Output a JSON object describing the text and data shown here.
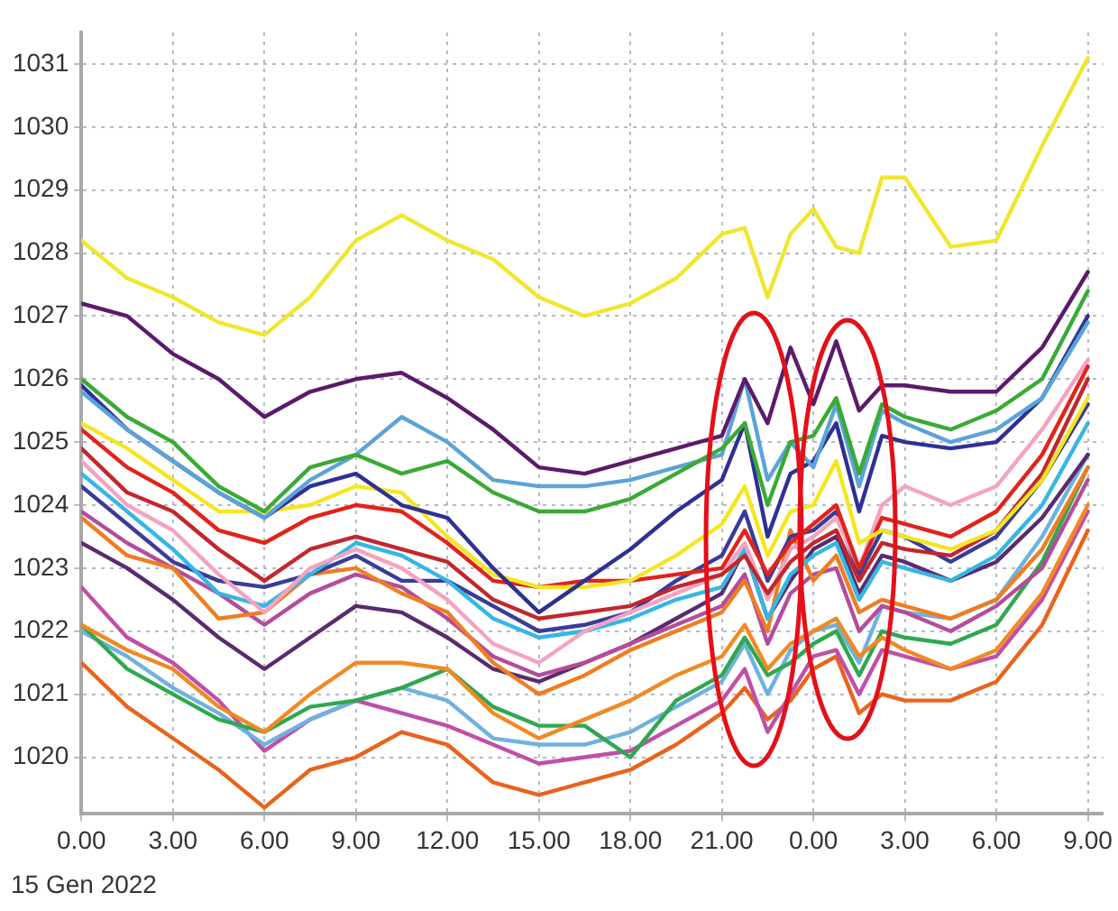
{
  "chart_data": {
    "type": "line",
    "annotations": [
      "15 Gen 2022"
    ],
    "x": [
      "2022-01-15T00:00",
      "2022-01-15T01:30",
      "2022-01-15T03:00",
      "2022-01-15T04:30",
      "2022-01-15T06:00",
      "2022-01-15T07:30",
      "2022-01-15T09:00",
      "2022-01-15T10:30",
      "2022-01-15T12:00",
      "2022-01-15T13:30",
      "2022-01-15T15:00",
      "2022-01-15T16:30",
      "2022-01-15T18:00",
      "2022-01-15T19:30",
      "2022-01-15T21:00",
      "2022-01-15T21:45",
      "2022-01-15T22:30",
      "2022-01-15T23:15",
      "2022-01-16T00:00",
      "2022-01-16T00:45",
      "2022-01-16T01:30",
      "2022-01-16T02:15",
      "2022-01-16T03:00",
      "2022-01-16T04:30",
      "2022-01-16T06:00",
      "2022-01-16T07:30",
      "2022-01-16T09:00"
    ],
    "xlim": [
      "2022-01-15T00:00",
      "2022-01-16T09:30"
    ],
    "xticks": [
      {
        "value": "2022-01-15T00:00",
        "label": "0.00"
      },
      {
        "value": "2022-01-15T03:00",
        "label": "3.00"
      },
      {
        "value": "2022-01-15T06:00",
        "label": "6.00"
      },
      {
        "value": "2022-01-15T09:00",
        "label": "9.00"
      },
      {
        "value": "2022-01-15T12:00",
        "label": "12.00"
      },
      {
        "value": "2022-01-15T15:00",
        "label": "15.00"
      },
      {
        "value": "2022-01-15T18:00",
        "label": "18.00"
      },
      {
        "value": "2022-01-15T21:00",
        "label": "21.00"
      },
      {
        "value": "2022-01-16T00:00",
        "label": "0.00"
      },
      {
        "value": "2022-01-16T03:00",
        "label": "3.00"
      },
      {
        "value": "2022-01-16T06:00",
        "label": "6.00"
      },
      {
        "value": "2022-01-16T09:00",
        "label": "9.00"
      }
    ],
    "ylim": [
      1019.1,
      1031.5
    ],
    "yticks": [
      1020,
      1021,
      1022,
      1023,
      1024,
      1025,
      1026,
      1027,
      1028,
      1029,
      1030,
      1031
    ],
    "grid": true,
    "legend": false,
    "marker": "none",
    "line_style": "solid",
    "series": [
      {
        "color": "#f0e630",
        "values": [
          1028.2,
          1027.6,
          1027.3,
          1026.9,
          1026.7,
          1027.3,
          1028.2,
          1028.6,
          1028.2,
          1027.9,
          1027.3,
          1027.0,
          1027.2,
          1027.6,
          1028.3,
          1028.4,
          1027.3,
          1028.3,
          1028.7,
          1028.1,
          1028.0,
          1029.2,
          1029.2,
          1028.1,
          1028.2,
          1029.7,
          1031.1
        ]
      },
      {
        "color": "#5c1a6b",
        "values": [
          1027.2,
          1027.0,
          1026.4,
          1026.0,
          1025.4,
          1025.8,
          1026.0,
          1026.1,
          1025.7,
          1025.2,
          1024.6,
          1024.5,
          1024.7,
          1024.9,
          1025.1,
          1026.0,
          1025.3,
          1026.5,
          1025.6,
          1026.6,
          1025.5,
          1025.9,
          1025.9,
          1025.8,
          1025.8,
          1026.5,
          1027.7
        ]
      },
      {
        "color": "#3aaa35",
        "values": [
          1026.0,
          1025.4,
          1025.0,
          1024.3,
          1023.9,
          1024.6,
          1024.8,
          1024.5,
          1024.7,
          1024.2,
          1023.9,
          1023.9,
          1024.1,
          1024.5,
          1024.9,
          1025.3,
          1024.0,
          1025.0,
          1025.1,
          1025.7,
          1024.5,
          1025.6,
          1025.4,
          1025.2,
          1025.5,
          1026.0,
          1027.4
        ]
      },
      {
        "color": "#5ba3d8",
        "values": [
          1025.8,
          1025.2,
          1024.7,
          1024.2,
          1023.8,
          1024.4,
          1024.8,
          1025.4,
          1025.0,
          1024.4,
          1024.3,
          1024.3,
          1024.4,
          1024.6,
          1024.8,
          1026.0,
          1024.4,
          1025.0,
          1024.6,
          1025.6,
          1024.3,
          1025.5,
          1025.3,
          1025.0,
          1025.2,
          1025.7,
          1026.9
        ]
      },
      {
        "color": "#2e3192",
        "values": [
          1025.9,
          1025.2,
          1024.7,
          1024.2,
          1023.8,
          1024.3,
          1024.5,
          1024.0,
          1023.8,
          1023.0,
          1022.3,
          1022.8,
          1023.3,
          1023.9,
          1024.4,
          1025.3,
          1023.5,
          1024.5,
          1024.7,
          1025.3,
          1023.9,
          1025.1,
          1025.0,
          1024.9,
          1025.0,
          1025.7,
          1027.0
        ]
      },
      {
        "color": "#f5e61f",
        "values": [
          1025.3,
          1024.9,
          1024.4,
          1023.9,
          1023.9,
          1024.0,
          1024.3,
          1024.2,
          1023.5,
          1022.9,
          1022.7,
          1022.7,
          1022.8,
          1023.2,
          1023.7,
          1024.3,
          1023.2,
          1023.9,
          1024.0,
          1024.7,
          1023.4,
          1023.6,
          1023.5,
          1023.3,
          1023.6,
          1024.4,
          1025.7
        ]
      },
      {
        "color": "#e2231a",
        "values": [
          1025.2,
          1024.6,
          1024.2,
          1023.6,
          1023.4,
          1023.8,
          1024.0,
          1023.9,
          1023.4,
          1022.8,
          1022.7,
          1022.8,
          1022.8,
          1022.9,
          1023.0,
          1023.6,
          1022.9,
          1023.4,
          1023.7,
          1024.0,
          1023.0,
          1023.8,
          1023.7,
          1023.5,
          1023.9,
          1024.8,
          1026.2
        ]
      },
      {
        "color": "#c1272d",
        "values": [
          1024.9,
          1024.2,
          1023.9,
          1023.3,
          1022.8,
          1023.3,
          1023.5,
          1023.3,
          1023.1,
          1022.5,
          1022.2,
          1022.3,
          1022.4,
          1022.7,
          1022.9,
          1023.2,
          1022.6,
          1023.1,
          1023.4,
          1023.6,
          1022.8,
          1023.4,
          1023.3,
          1023.2,
          1023.6,
          1024.5,
          1026.0
        ]
      },
      {
        "color": "#f4a3c0",
        "values": [
          1024.7,
          1024.0,
          1023.6,
          1022.9,
          1022.3,
          1023.0,
          1023.3,
          1023.0,
          1022.5,
          1021.8,
          1021.5,
          1022.0,
          1022.3,
          1022.6,
          1022.9,
          1023.4,
          1022.5,
          1023.3,
          1023.5,
          1023.8,
          1023.0,
          1024.0,
          1024.3,
          1024.0,
          1024.3,
          1025.2,
          1026.3
        ]
      },
      {
        "color": "#36b6e3",
        "values": [
          1024.5,
          1023.9,
          1023.3,
          1022.6,
          1022.4,
          1022.9,
          1023.4,
          1023.2,
          1022.8,
          1022.2,
          1021.9,
          1022.0,
          1022.2,
          1022.5,
          1022.7,
          1023.3,
          1022.2,
          1022.9,
          1023.2,
          1023.4,
          1022.5,
          1023.1,
          1023.0,
          1022.8,
          1023.2,
          1024.0,
          1025.3
        ]
      },
      {
        "color": "#3b3c98",
        "values": [
          1024.3,
          1023.7,
          1023.1,
          1022.8,
          1022.7,
          1022.9,
          1023.2,
          1022.8,
          1022.8,
          1022.4,
          1022.0,
          1022.1,
          1022.3,
          1022.8,
          1023.2,
          1023.9,
          1022.8,
          1023.5,
          1023.6,
          1023.9,
          1022.9,
          1023.6,
          1023.5,
          1023.1,
          1023.5,
          1024.4,
          1025.6
        ]
      },
      {
        "color": "#ef7d22",
        "values": [
          1023.8,
          1023.2,
          1023.0,
          1022.2,
          1022.3,
          1022.9,
          1023.0,
          1022.6,
          1022.3,
          1021.5,
          1021.0,
          1021.3,
          1021.7,
          1022.0,
          1022.3,
          1022.8,
          1022.0,
          1023.6,
          1022.8,
          1023.2,
          1022.3,
          1022.5,
          1022.4,
          1022.2,
          1022.5,
          1023.3,
          1024.6
        ]
      },
      {
        "color": "#b44c9c",
        "values": [
          1023.9,
          1023.4,
          1023.0,
          1022.6,
          1022.1,
          1022.6,
          1022.9,
          1022.7,
          1022.2,
          1021.6,
          1021.3,
          1021.5,
          1021.8,
          1022.1,
          1022.4,
          1022.9,
          1021.8,
          1022.6,
          1022.9,
          1023.0,
          1022.0,
          1022.4,
          1022.3,
          1022.0,
          1022.4,
          1023.0,
          1024.4
        ]
      },
      {
        "color": "#5b2a6e",
        "values": [
          1023.4,
          1023.0,
          1022.5,
          1021.9,
          1021.4,
          1021.9,
          1022.4,
          1022.3,
          1021.9,
          1021.4,
          1021.2,
          1021.5,
          1021.8,
          1022.2,
          1022.6,
          1023.3,
          1022.2,
          1022.8,
          1023.3,
          1023.5,
          1022.6,
          1023.2,
          1023.1,
          1022.8,
          1023.1,
          1023.8,
          1024.8
        ]
      },
      {
        "color": "#f08a24",
        "values": [
          1022.1,
          1021.7,
          1021.4,
          1020.8,
          1020.4,
          1021.0,
          1021.5,
          1021.5,
          1021.4,
          1020.7,
          1020.3,
          1020.6,
          1020.9,
          1021.3,
          1021.6,
          1022.1,
          1021.4,
          1021.8,
          1022.0,
          1022.2,
          1021.6,
          1021.9,
          1021.7,
          1021.4,
          1021.7,
          1022.6,
          1024.0
        ]
      },
      {
        "color": "#2fa84f",
        "values": [
          1022.1,
          1021.4,
          1021.0,
          1020.6,
          1020.4,
          1020.8,
          1020.9,
          1021.1,
          1021.4,
          1020.8,
          1020.5,
          1020.5,
          1020.0,
          1020.9,
          1021.3,
          1021.9,
          1021.3,
          1021.5,
          1021.8,
          1022.0,
          1021.3,
          1022.0,
          1021.9,
          1021.8,
          1022.1,
          1023.1,
          1024.6
        ]
      },
      {
        "color": "#6fb2de",
        "values": [
          1022.0,
          1021.6,
          1021.1,
          1020.7,
          1020.2,
          1020.6,
          1020.9,
          1021.1,
          1020.9,
          1020.3,
          1020.2,
          1020.2,
          1020.4,
          1020.8,
          1021.2,
          1021.8,
          1021.0,
          1021.7,
          1022.0,
          1022.1,
          1021.5,
          1022.4,
          1022.3,
          1022.2,
          1022.5,
          1023.5,
          1024.8
        ]
      },
      {
        "color": "#c04fa8",
        "values": [
          1022.7,
          1021.9,
          1021.5,
          1020.9,
          1020.1,
          1020.6,
          1020.9,
          1020.7,
          1020.5,
          1020.2,
          1019.9,
          1020.0,
          1020.1,
          1020.5,
          1020.9,
          1021.4,
          1020.4,
          1021.0,
          1021.6,
          1021.7,
          1021.0,
          1021.7,
          1021.6,
          1021.4,
          1021.6,
          1022.5,
          1023.9
        ]
      },
      {
        "color": "#e8641c",
        "values": [
          1021.5,
          1020.8,
          1020.3,
          1019.8,
          1019.2,
          1019.8,
          1020.0,
          1020.4,
          1020.2,
          1019.6,
          1019.4,
          1019.6,
          1019.8,
          1020.2,
          1020.7,
          1021.1,
          1020.6,
          1020.9,
          1021.4,
          1021.6,
          1020.7,
          1021.0,
          1020.9,
          1020.9,
          1021.2,
          1022.1,
          1023.6
        ]
      }
    ]
  }
}
